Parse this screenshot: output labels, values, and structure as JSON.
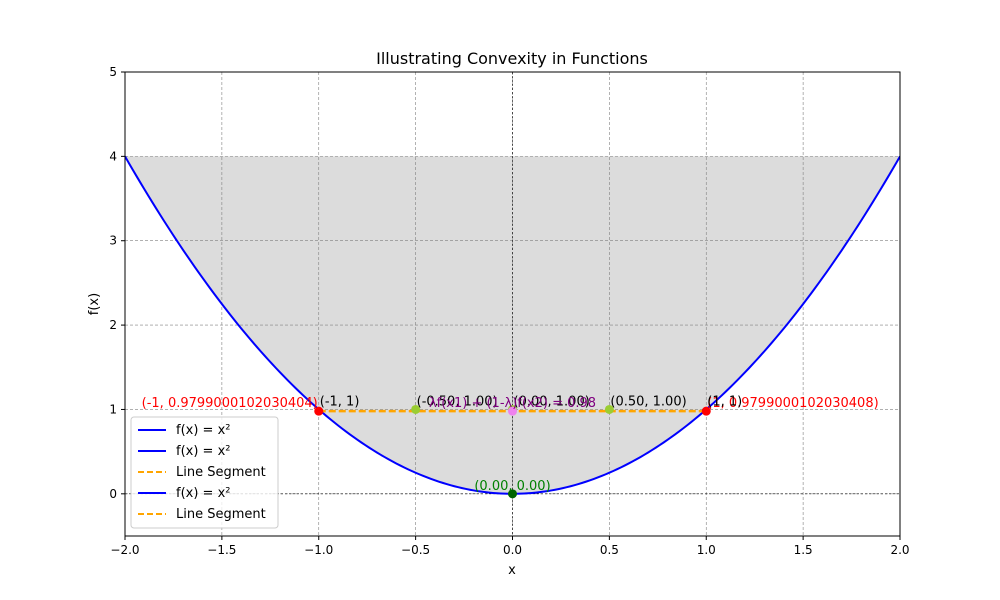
{
  "chart_data": {
    "type": "line",
    "title": "Illustrating Convexity in Functions",
    "xlabel": "x",
    "ylabel": "f(x)",
    "xlim": [
      -2,
      2
    ],
    "ylim": [
      -0.5,
      5
    ],
    "x_ticks": [
      -2.0,
      -1.5,
      -1.0,
      -0.5,
      0.0,
      0.5,
      1.0,
      1.5,
      2.0
    ],
    "x_tick_labels": [
      "−2.0",
      "−1.5",
      "−1.0",
      "−0.5",
      "0.0",
      "0.5",
      "1.0",
      "1.5",
      "2.0"
    ],
    "y_ticks": [
      0,
      1,
      2,
      3,
      4,
      5
    ],
    "y_tick_labels": [
      "0",
      "1",
      "2",
      "3",
      "4",
      "5"
    ],
    "grid": true,
    "legend_position": "lower-left",
    "legend": [
      {
        "label": "f(x) = x²",
        "style": "solid",
        "color": "#0000ff"
      },
      {
        "label": "f(x) = x²",
        "style": "solid",
        "color": "#0000ff"
      },
      {
        "label": "Line Segment",
        "style": "dashed",
        "color": "#ffa500"
      },
      {
        "label": "f(x) = x²",
        "style": "solid",
        "color": "#0000ff"
      },
      {
        "label": "Line Segment",
        "style": "dashed",
        "color": "#ffa500"
      }
    ],
    "curve": {
      "function": "x^2",
      "x_range": [
        -2,
        2
      ],
      "color": "#0000ff"
    },
    "shaded_region": {
      "description": "area between f(x)=x^2 and y=4",
      "upper_y": 4,
      "x_range": [
        -2,
        2
      ],
      "color": "#dcdcdc"
    },
    "line_segment": {
      "x": [
        -1,
        1
      ],
      "y": [
        0.9799,
        0.9799
      ],
      "color": "#ffa500"
    },
    "points": [
      {
        "x": -1,
        "y": 0.9799,
        "color": "#ff0000"
      },
      {
        "x": 1,
        "y": 0.9799,
        "color": "#ff0000"
      },
      {
        "x": -0.5,
        "y": 1.0,
        "color": "#9acd32"
      },
      {
        "x": 0.0,
        "y": 1.0,
        "color": "#9acd32"
      },
      {
        "x": 0.5,
        "y": 1.0,
        "color": "#9acd32"
      },
      {
        "x": 0.0,
        "y": 0.98,
        "color": "#ee82ee"
      },
      {
        "x": 0.0,
        "y": 0.0,
        "color": "#006400"
      }
    ],
    "annotations": [
      {
        "text": "(-1, 0.9799000102030404)",
        "x": -1,
        "y": 0.9799,
        "anchor": "end",
        "color": "#ff0000"
      },
      {
        "text": "(1, 0.9799000102030408)",
        "x": 1,
        "y": 0.9799,
        "anchor": "start",
        "color": "#ff0000"
      },
      {
        "text": "(-1, 1)",
        "x": -1,
        "y": 1.0,
        "anchor": "start",
        "color": "#000000"
      },
      {
        "text": "(1, 1)",
        "x": 1,
        "y": 1.0,
        "anchor": "start",
        "color": "#000000"
      },
      {
        "text": "(-0.50, 1.00)",
        "x": -0.5,
        "y": 1.0,
        "anchor": "start",
        "color": "#000000"
      },
      {
        "text": "(0.00, 1.00)",
        "x": 0.0,
        "y": 1.0,
        "anchor": "start",
        "color": "#000000"
      },
      {
        "text": "(0.50, 1.00)",
        "x": 0.5,
        "y": 1.0,
        "anchor": "start",
        "color": "#000000"
      },
      {
        "text": "λf(x1) + (1-λ)f(x2) = 0.98",
        "x": 0.0,
        "y": 0.98,
        "anchor": "middle",
        "color": "#800080"
      },
      {
        "text": "(0.00, 0.00)",
        "x": 0.0,
        "y": 0.0,
        "anchor": "middle",
        "color": "#008000"
      }
    ]
  }
}
